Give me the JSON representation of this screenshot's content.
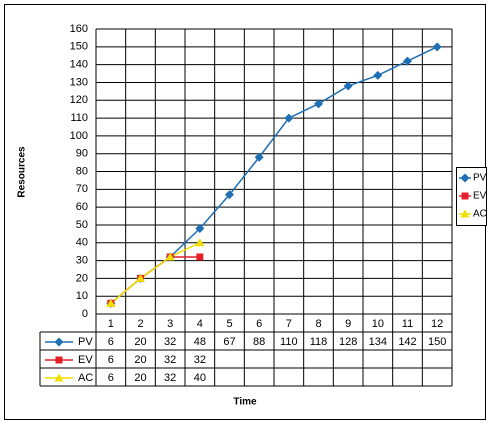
{
  "chart_data": {
    "type": "line",
    "x_label": "Time",
    "y_label": "Resources",
    "categories": [
      1,
      2,
      3,
      4,
      5,
      6,
      7,
      8,
      9,
      10,
      11,
      12
    ],
    "series": [
      {
        "name": "PV",
        "color": "#1f6fb5",
        "marker": "diamond",
        "values": [
          6,
          20,
          32,
          48,
          67,
          88,
          110,
          118,
          128,
          134,
          142,
          150
        ]
      },
      {
        "name": "EV",
        "color": "#e3202a",
        "marker": "square",
        "values": [
          6,
          20,
          32,
          32,
          null,
          null,
          null,
          null,
          null,
          null,
          null,
          null
        ]
      },
      {
        "name": "AC",
        "color": "#f2df00",
        "marker": "triangle",
        "values": [
          6,
          20,
          32,
          40,
          null,
          null,
          null,
          null,
          null,
          null,
          null,
          null
        ]
      }
    ],
    "ylim": [
      0,
      160
    ],
    "yticks": [
      0,
      10,
      20,
      30,
      40,
      50,
      60,
      70,
      80,
      90,
      100,
      110,
      120,
      130,
      140,
      150,
      160
    ],
    "grid": true,
    "legend": "right",
    "data_table": true
  }
}
